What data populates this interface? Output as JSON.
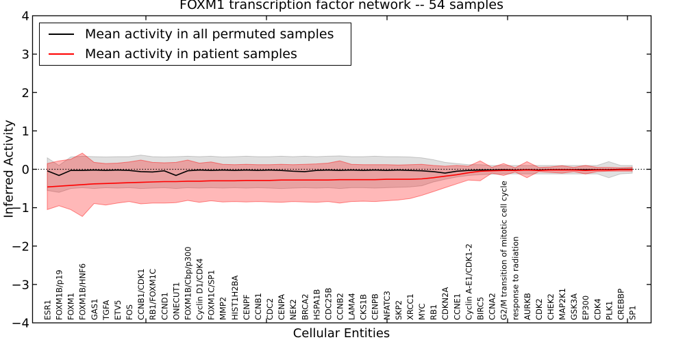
{
  "title": "FOXM1 transcription factor network -- 54 samples",
  "axes": {
    "ylabel": "Inferred Activity",
    "xlabel": "Cellular Entities",
    "ytick_labels": [
      "4",
      "3",
      "2",
      "1",
      "0",
      "−1",
      "−2",
      "−3",
      "−4"
    ],
    "ytick_values": [
      4,
      3,
      2,
      1,
      0,
      -1,
      -2,
      -3,
      -4
    ]
  },
  "legend": {
    "items": [
      {
        "label": "Mean activity in all permuted samples",
        "color": "#000000"
      },
      {
        "label": "Mean activity in patient samples",
        "color": "#ff0000"
      }
    ]
  },
  "chart_data": {
    "type": "line",
    "title": "FOXM1 transcription factor network -- 54 samples",
    "xlabel": "Cellular Entities",
    "ylabel": "Inferred Activity",
    "ylim": [
      -4,
      4
    ],
    "grid": false,
    "zero_line_dotted": true,
    "legend_position": "upper left",
    "categories": [
      "ESR1",
      "FOXM1B/p19",
      "FOXM1",
      "FOXM1B/HNF6",
      "GAS1",
      "TGFA",
      "ETV5",
      "FOS",
      "CCNB1/CDK1",
      "RB1/FOXM1C",
      "CCND1",
      "ONECUT1",
      "FOXM1B/Cbp/p300",
      "Cyclin D1/CDK4",
      "FOXM1C/SP1",
      "MMP2",
      "HIST1H2BA",
      "CENPF",
      "CCNB1",
      "CDC2",
      "CENPA",
      "NEK2",
      "BRCA2",
      "HSPA1B",
      "CDC25B",
      "CCNB2",
      "LAMA4",
      "CKS1B",
      "CENPB",
      "NFATC3",
      "SKP2",
      "XRCC1",
      "MYC",
      "RB1",
      "CDKN2A",
      "CCNE1",
      "Cyclin A-E1/CDK1-2",
      "BIRC5",
      "CCNA2",
      "G2/M transition of mitotic cell cycle",
      "response to radiation",
      "AURKB",
      "CDK2",
      "CHEK2",
      "MAP2K1",
      "GSK3A",
      "EP300",
      "CDK4",
      "PLK1",
      "CREBBP",
      "SP1"
    ],
    "series": [
      {
        "name": "Mean activity in all permuted samples",
        "kind": "line",
        "color": "#000000",
        "values": [
          -0.04,
          -0.16,
          -0.03,
          -0.03,
          -0.02,
          -0.03,
          -0.02,
          -0.03,
          -0.06,
          -0.07,
          -0.04,
          -0.16,
          -0.04,
          -0.02,
          -0.03,
          -0.02,
          -0.03,
          -0.02,
          -0.03,
          -0.02,
          -0.03,
          -0.05,
          -0.06,
          -0.03,
          -0.02,
          -0.03,
          -0.02,
          -0.03,
          -0.02,
          -0.03,
          -0.02,
          -0.03,
          -0.04,
          -0.06,
          -0.1,
          -0.05,
          -0.03,
          -0.02,
          -0.02,
          -0.01,
          -0.02,
          -0.01,
          -0.02,
          -0.01,
          -0.01,
          -0.01,
          -0.01,
          -0.01,
          -0.01,
          0.0,
          0.0
        ]
      },
      {
        "name": "Mean activity in patient samples",
        "kind": "line",
        "color": "#ff0000",
        "values": [
          -0.46,
          -0.44,
          -0.42,
          -0.4,
          -0.38,
          -0.37,
          -0.36,
          -0.35,
          -0.34,
          -0.33,
          -0.32,
          -0.32,
          -0.31,
          -0.31,
          -0.3,
          -0.3,
          -0.3,
          -0.29,
          -0.29,
          -0.29,
          -0.28,
          -0.28,
          -0.28,
          -0.28,
          -0.28,
          -0.27,
          -0.27,
          -0.27,
          -0.27,
          -0.26,
          -0.26,
          -0.26,
          -0.25,
          -0.22,
          -0.18,
          -0.14,
          -0.09,
          -0.05,
          -0.04,
          -0.03,
          -0.03,
          -0.02,
          -0.03,
          -0.02,
          -0.02,
          -0.02,
          -0.03,
          -0.02,
          -0.02,
          -0.01,
          -0.01
        ]
      },
      {
        "name": "Permuted samples range",
        "kind": "band",
        "fill": "rgba(0,0,0,0.12)",
        "edge": "rgba(0,0,0,0.18)",
        "upper": [
          0.3,
          0.1,
          0.32,
          0.34,
          0.33,
          0.32,
          0.33,
          0.33,
          0.37,
          0.33,
          0.32,
          0.33,
          0.34,
          0.33,
          0.34,
          0.32,
          0.33,
          0.34,
          0.33,
          0.33,
          0.34,
          0.33,
          0.34,
          0.33,
          0.34,
          0.35,
          0.33,
          0.33,
          0.34,
          0.33,
          0.33,
          0.32,
          0.3,
          0.25,
          0.18,
          0.15,
          0.12,
          0.12,
          0.1,
          0.1,
          0.1,
          0.1,
          0.1,
          0.1,
          0.1,
          0.1,
          0.1,
          0.1,
          0.2,
          0.1,
          0.1
        ],
        "lower": [
          -0.55,
          -0.6,
          -0.5,
          -0.48,
          -0.5,
          -0.48,
          -0.49,
          -0.48,
          -0.5,
          -0.49,
          -0.48,
          -0.5,
          -0.48,
          -0.49,
          -0.48,
          -0.49,
          -0.48,
          -0.49,
          -0.48,
          -0.49,
          -0.5,
          -0.49,
          -0.48,
          -0.49,
          -0.48,
          -0.5,
          -0.48,
          -0.48,
          -0.49,
          -0.48,
          -0.47,
          -0.46,
          -0.43,
          -0.33,
          -0.26,
          -0.2,
          -0.16,
          -0.14,
          -0.13,
          -0.12,
          -0.12,
          -0.12,
          -0.12,
          -0.12,
          -0.12,
          -0.12,
          -0.12,
          -0.12,
          -0.22,
          -0.12,
          -0.1
        ]
      },
      {
        "name": "Patient samples range",
        "kind": "band",
        "fill": "rgba(255,0,0,0.28)",
        "edge": "rgba(255,0,0,0.45)",
        "upper": [
          0.15,
          0.22,
          0.26,
          0.42,
          0.18,
          0.15,
          0.16,
          0.19,
          0.24,
          0.18,
          0.17,
          0.18,
          0.24,
          0.16,
          0.19,
          0.13,
          0.12,
          0.13,
          0.12,
          0.12,
          0.13,
          0.12,
          0.13,
          0.14,
          0.16,
          0.22,
          0.13,
          0.12,
          0.12,
          0.12,
          0.11,
          0.12,
          0.13,
          0.1,
          0.08,
          0.1,
          0.08,
          0.22,
          0.05,
          0.15,
          0.04,
          0.2,
          0.05,
          0.06,
          0.09,
          0.05,
          0.1,
          0.05,
          0.05,
          0.04,
          0.05
        ],
        "lower": [
          -1.05,
          -0.95,
          -1.05,
          -1.23,
          -0.89,
          -0.93,
          -0.88,
          -0.84,
          -0.9,
          -0.88,
          -0.88,
          -0.87,
          -0.81,
          -0.86,
          -0.82,
          -0.85,
          -0.84,
          -0.85,
          -0.84,
          -0.85,
          -0.86,
          -0.84,
          -0.85,
          -0.86,
          -0.84,
          -0.88,
          -0.84,
          -0.83,
          -0.84,
          -0.82,
          -0.8,
          -0.76,
          -0.68,
          -0.58,
          -0.48,
          -0.38,
          -0.28,
          -0.3,
          -0.1,
          -0.16,
          -0.07,
          -0.22,
          -0.06,
          -0.08,
          -0.1,
          -0.06,
          -0.12,
          -0.06,
          -0.05,
          -0.05,
          -0.05
        ]
      }
    ]
  }
}
